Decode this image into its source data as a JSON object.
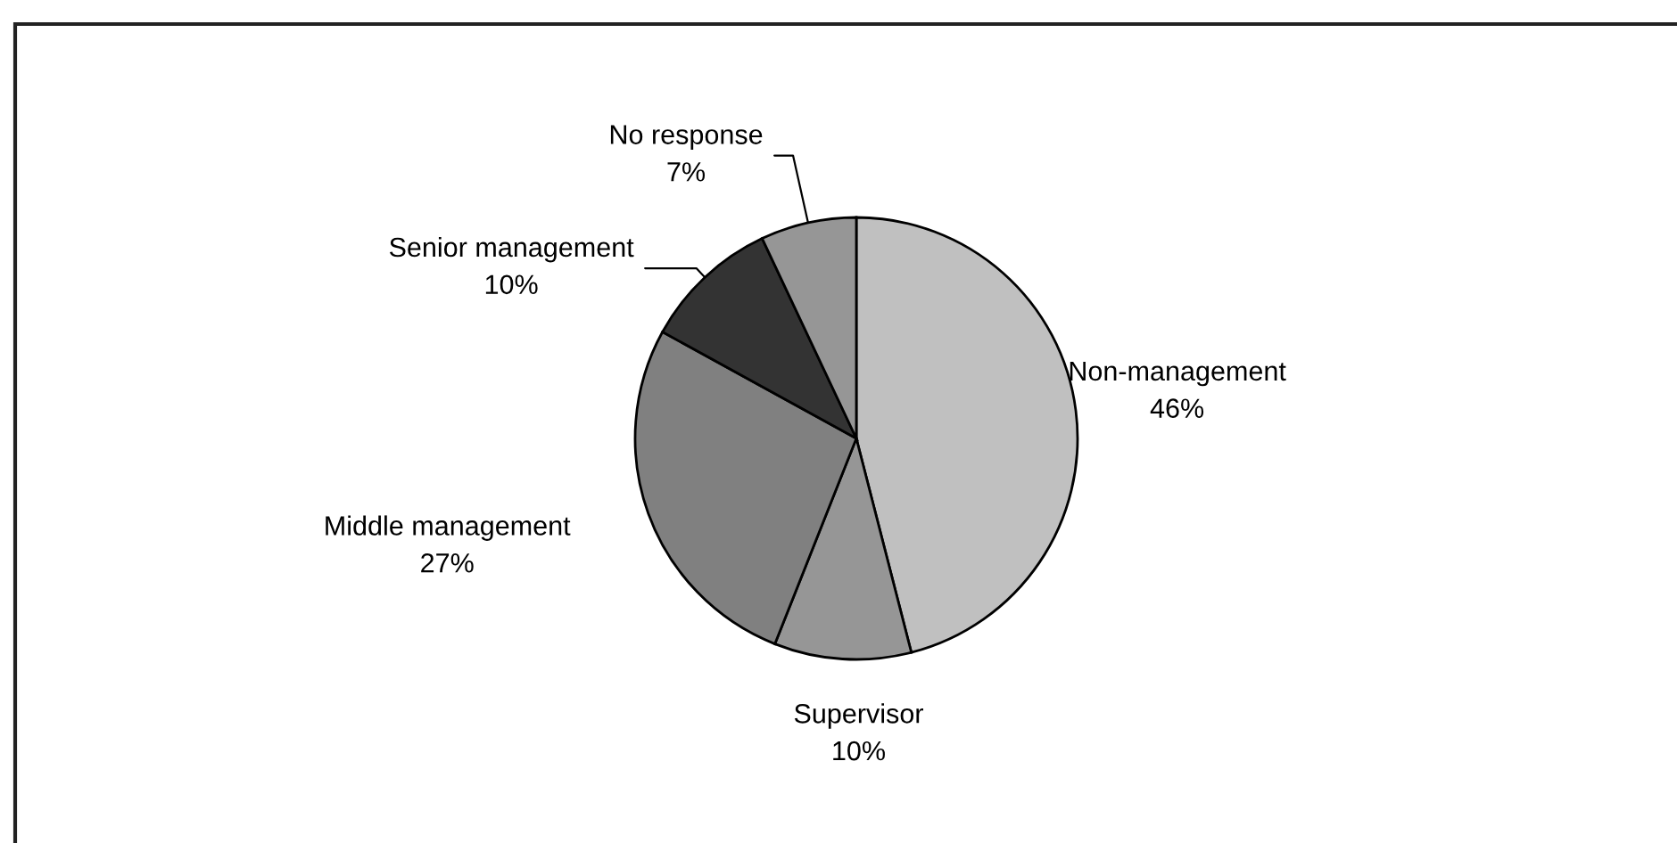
{
  "chart_data": {
    "type": "pie",
    "categories": [
      "Non-management",
      "Supervisor",
      "Middle management",
      "Senior management",
      "No response"
    ],
    "values": [
      46,
      10,
      27,
      10,
      7
    ],
    "value_labels": [
      "46%",
      "10%",
      "27%",
      "10%",
      "7%"
    ],
    "colors": [
      "#c0c0c0",
      "#969696",
      "#808080",
      "#333333",
      "#969696"
    ]
  }
}
